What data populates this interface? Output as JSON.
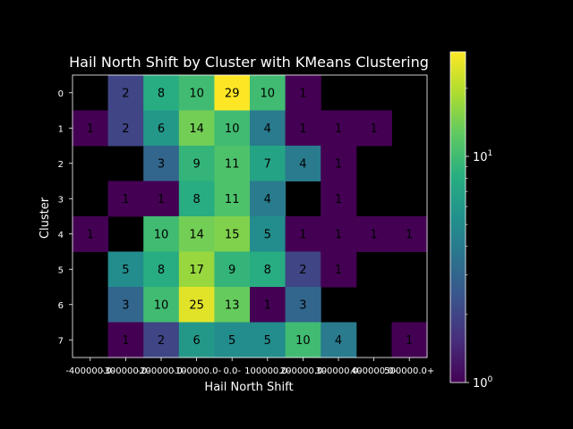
{
  "chart_data": {
    "type": "heatmap",
    "title": "Hail North Shift by Cluster with KMeans Clustering",
    "xlabel": "Hail North Shift",
    "ylabel": "Cluster",
    "x_tick_labels": [
      "-400000.0-",
      "-300000.0-",
      "-200000.0-",
      "-100000.0-",
      "0.0-",
      "100000.0-",
      "200000.0-",
      "300000.0-",
      "400000.0-",
      "500000.0+"
    ],
    "y_tick_labels": [
      "0",
      "1",
      "2",
      "3",
      "4",
      "5",
      "6",
      "7"
    ],
    "values": [
      [
        0,
        2,
        8,
        10,
        29,
        10,
        1,
        0,
        0,
        0
      ],
      [
        1,
        2,
        6,
        14,
        10,
        4,
        1,
        1,
        1,
        0
      ],
      [
        0,
        0,
        3,
        9,
        11,
        7,
        4,
        1,
        0,
        0
      ],
      [
        0,
        1,
        1,
        8,
        11,
        4,
        0,
        1,
        0,
        0
      ],
      [
        1,
        0,
        10,
        14,
        15,
        5,
        1,
        1,
        1,
        1
      ],
      [
        0,
        5,
        8,
        17,
        9,
        8,
        2,
        1,
        0,
        0
      ],
      [
        0,
        3,
        10,
        25,
        13,
        1,
        3,
        0,
        0,
        0
      ],
      [
        0,
        1,
        2,
        6,
        5,
        5,
        10,
        4,
        0,
        1
      ]
    ],
    "color_scale": "log",
    "colormap": "viridis",
    "vmin": 1,
    "vmax": 29,
    "colorbar_ticks": [
      {
        "base": "10",
        "exp": "0",
        "value": 1
      },
      {
        "base": "10",
        "exp": "1",
        "value": 10
      }
    ],
    "background": "#000000"
  }
}
